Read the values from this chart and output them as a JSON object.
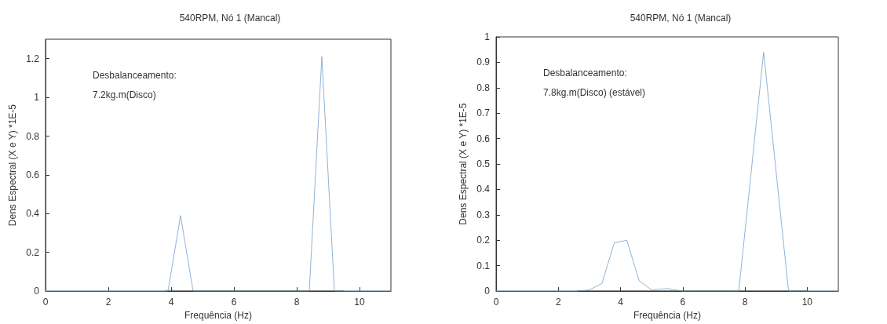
{
  "chart_data": [
    {
      "type": "line",
      "title": "540RPM, Nó 1 (Mancal)",
      "xlabel": "Frequência (Hz)",
      "ylabel": "Dens Espectral (X e Y) *1E-5",
      "annotations": [
        "Desbalanceamento:",
        "7.2kg.m(Disco)"
      ],
      "xlim": [
        0,
        11
      ],
      "xticks": [
        0,
        2,
        4,
        6,
        8,
        10
      ],
      "ylim": [
        0,
        1.3
      ],
      "yticks": [
        0,
        0.2,
        0.4,
        0.6,
        0.8,
        1,
        1.2
      ],
      "grid": false,
      "marker": "none",
      "line_style": "solid",
      "series": [
        {
          "color": "#8fb4d8",
          "x": [
            0,
            3.9,
            4.3,
            4.7,
            8.4,
            8.8,
            9.2,
            11
          ],
          "values": [
            0,
            0,
            0.39,
            0,
            0,
            1.21,
            0,
            0
          ]
        },
        {
          "color": "#3a4a3a",
          "x": [
            3.8,
            4.0,
            4.4,
            5.0,
            8.2,
            8.6,
            9.0,
            9.5
          ],
          "values": [
            0,
            0,
            0,
            0,
            0,
            0,
            0,
            0
          ]
        }
      ]
    },
    {
      "type": "line",
      "title": "540RPM, Nó 1 (Mancal)",
      "xlabel": "Frequência (Hz)",
      "ylabel": "Dens Espectral (X e Y) *1E-5",
      "annotations": [
        "Desbalanceamento:",
        "7.8kg.m(Disco) (estável)"
      ],
      "xlim": [
        0,
        11
      ],
      "xticks": [
        0,
        2,
        4,
        6,
        8,
        10
      ],
      "ylim": [
        0,
        1
      ],
      "yticks": [
        0,
        0.1,
        0.2,
        0.3,
        0.4,
        0.5,
        0.6,
        0.7,
        0.8,
        0.9,
        1
      ],
      "grid": false,
      "marker": "none",
      "line_style": "solid",
      "series": [
        {
          "color": "#8fb4d8",
          "x": [
            0,
            2.6,
            3.0,
            3.4,
            3.8,
            4.2,
            4.6,
            5.0,
            5.5,
            6.0,
            7.8,
            8.6,
            9.4,
            11
          ],
          "values": [
            0,
            0,
            0.005,
            0.03,
            0.19,
            0.2,
            0.04,
            0.005,
            0.01,
            0,
            0,
            0.94,
            0,
            0
          ]
        },
        {
          "color": "#3a4a3a",
          "x": [
            2.6,
            3.2,
            5.4,
            6.2,
            7.5,
            7.9,
            9.3,
            10.0
          ],
          "values": [
            0,
            0,
            0,
            0,
            0,
            0,
            0,
            0
          ]
        }
      ]
    }
  ]
}
